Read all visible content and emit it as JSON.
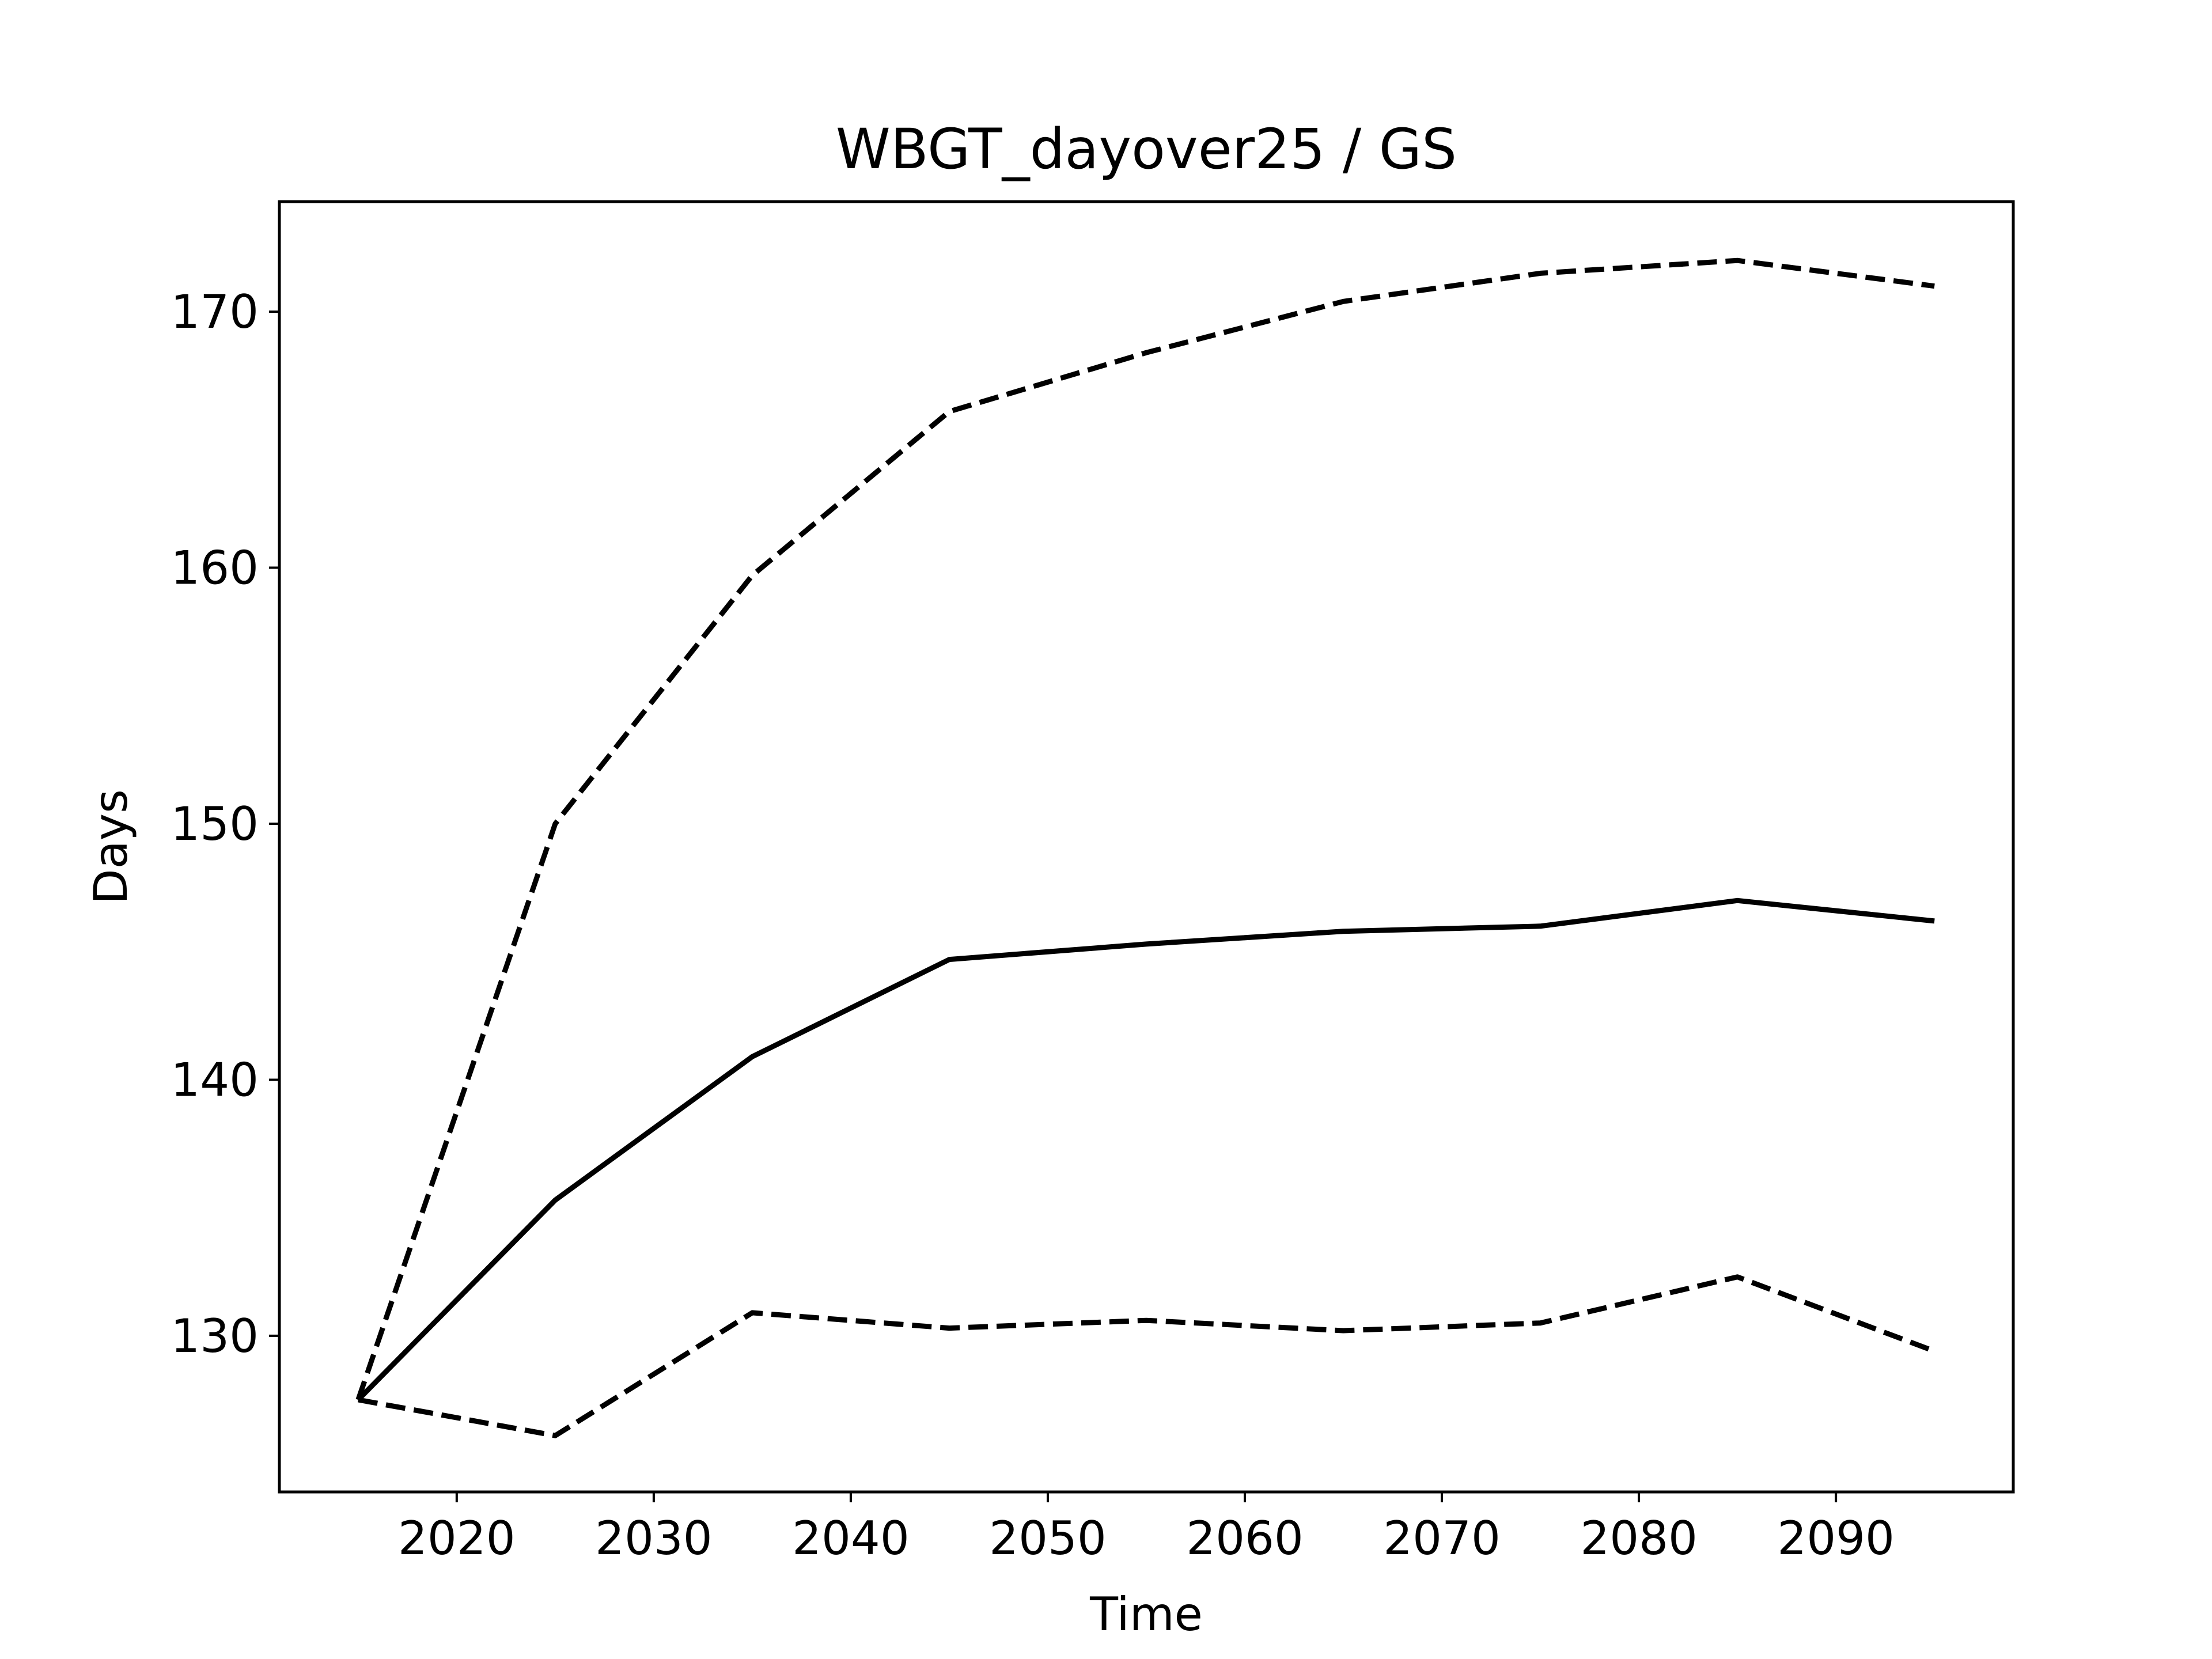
{
  "chart_data": {
    "type": "line",
    "title": "WBGT_dayover25 / GS",
    "xlabel": "Time",
    "ylabel": "Days",
    "x": [
      2015,
      2025,
      2035,
      2045,
      2055,
      2065,
      2075,
      2085,
      2095
    ],
    "series": [
      {
        "line_style": "solid",
        "color": "#000000",
        "values": [
          127.5,
          135.3,
          140.9,
          144.7,
          145.3,
          145.8,
          146.0,
          147.0,
          146.2
        ]
      },
      {
        "line_style": "dashed",
        "color": "#000000",
        "values": [
          127.5,
          150.0,
          159.7,
          166.1,
          168.4,
          170.4,
          171.5,
          172.0,
          171.0
        ]
      },
      {
        "line_style": "dashed",
        "color": "#000000",
        "values": [
          127.5,
          126.1,
          130.9,
          130.3,
          130.6,
          130.2,
          130.5,
          132.3,
          129.4
        ]
      }
    ],
    "xlim": [
      2011,
      2099
    ],
    "ylim": [
      123.9,
      174.3
    ],
    "xticks": [
      2020,
      2030,
      2040,
      2050,
      2060,
      2070,
      2080,
      2090
    ],
    "yticks": [
      130,
      140,
      150,
      160,
      170
    ],
    "grid": false,
    "legend": "none"
  }
}
